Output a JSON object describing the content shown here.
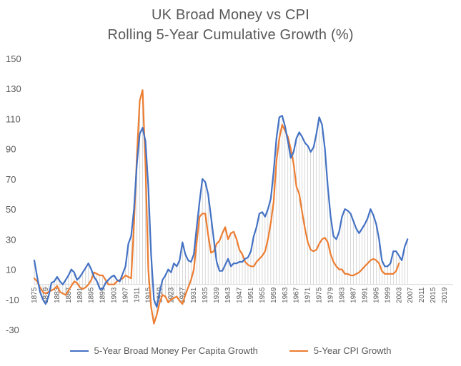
{
  "chart_data": {
    "type": "line",
    "title": "UK Broad Money vs CPI",
    "subtitle": "Rolling 5-Year Cumulative Growth (%)",
    "xlabel": "",
    "ylabel": "",
    "ylim": [
      -30,
      150
    ],
    "yticks": [
      -30,
      -10,
      10,
      30,
      50,
      70,
      90,
      110,
      130,
      150
    ],
    "x_tick_labels": [
      "1875",
      "1879",
      "1883",
      "1887",
      "1891",
      "1895",
      "1899",
      "1903",
      "1907",
      "1911",
      "1915",
      "1919",
      "1923",
      "1927",
      "1931",
      "1935",
      "1939",
      "1943",
      "1947",
      "1951",
      "1955",
      "1959",
      "1963",
      "1967",
      "1971",
      "1975",
      "1979",
      "1983",
      "1987",
      "1991",
      "1995",
      "1999",
      "2003",
      "2007",
      "2011",
      "2015",
      "2019"
    ],
    "xlim": [
      1875,
      2022
    ],
    "grid": false,
    "legend_position": "bottom",
    "colors": {
      "money": "#4472C4",
      "cpi": "#ED7D31",
      "drop_lines": "#BFBFBF",
      "axis": "#D9D9D9"
    },
    "series": [
      {
        "name": "5-Year Broad Money Per Capita Growth",
        "points": [
          [
            1875,
            16
          ],
          [
            1876,
            5
          ],
          [
            1877,
            -5
          ],
          [
            1878,
            -10
          ],
          [
            1879,
            -13
          ],
          [
            1880,
            -8
          ],
          [
            1881,
            1
          ],
          [
            1882,
            2
          ],
          [
            1883,
            5
          ],
          [
            1884,
            2
          ],
          [
            1885,
            0
          ],
          [
            1886,
            3
          ],
          [
            1887,
            6
          ],
          [
            1888,
            10
          ],
          [
            1889,
            8
          ],
          [
            1890,
            3
          ],
          [
            1891,
            5
          ],
          [
            1892,
            8
          ],
          [
            1893,
            11
          ],
          [
            1894,
            14
          ],
          [
            1895,
            10
          ],
          [
            1896,
            5
          ],
          [
            1897,
            2
          ],
          [
            1898,
            -3
          ],
          [
            1899,
            -3
          ],
          [
            1900,
            1
          ],
          [
            1901,
            3
          ],
          [
            1902,
            5
          ],
          [
            1903,
            6
          ],
          [
            1904,
            3
          ],
          [
            1905,
            2
          ],
          [
            1906,
            7
          ],
          [
            1907,
            12
          ],
          [
            1908,
            27
          ],
          [
            1909,
            32
          ],
          [
            1910,
            50
          ],
          [
            1911,
            80
          ],
          [
            1912,
            100
          ],
          [
            1913,
            104
          ],
          [
            1914,
            95
          ],
          [
            1915,
            65
          ],
          [
            1916,
            20
          ],
          [
            1917,
            -10
          ],
          [
            1918,
            -15
          ],
          [
            1919,
            -5
          ],
          [
            1920,
            3
          ],
          [
            1921,
            6
          ],
          [
            1922,
            10
          ],
          [
            1923,
            8
          ],
          [
            1924,
            14
          ],
          [
            1925,
            12
          ],
          [
            1926,
            16
          ],
          [
            1927,
            28
          ],
          [
            1928,
            20
          ],
          [
            1929,
            16
          ],
          [
            1930,
            15
          ],
          [
            1931,
            20
          ],
          [
            1932,
            38
          ],
          [
            1933,
            55
          ],
          [
            1934,
            70
          ],
          [
            1935,
            68
          ],
          [
            1936,
            60
          ],
          [
            1937,
            45
          ],
          [
            1938,
            30
          ],
          [
            1939,
            15
          ],
          [
            1940,
            9
          ],
          [
            1941,
            9
          ],
          [
            1942,
            13
          ],
          [
            1943,
            17
          ],
          [
            1944,
            12
          ],
          [
            1945,
            14
          ],
          [
            1946,
            14
          ],
          [
            1947,
            15
          ],
          [
            1948,
            15
          ],
          [
            1949,
            17
          ],
          [
            1950,
            18
          ],
          [
            1951,
            22
          ],
          [
            1952,
            32
          ],
          [
            1953,
            38
          ],
          [
            1954,
            47
          ],
          [
            1955,
            48
          ],
          [
            1956,
            45
          ],
          [
            1957,
            50
          ],
          [
            1958,
            57
          ],
          [
            1959,
            75
          ],
          [
            1960,
            97
          ],
          [
            1961,
            111
          ],
          [
            1962,
            112
          ],
          [
            1963,
            105
          ],
          [
            1964,
            95
          ],
          [
            1965,
            84
          ],
          [
            1966,
            88
          ],
          [
            1967,
            97
          ],
          [
            1968,
            101
          ],
          [
            1969,
            98
          ],
          [
            1970,
            94
          ],
          [
            1971,
            92
          ],
          [
            1972,
            88
          ],
          [
            1973,
            91
          ],
          [
            1974,
            100
          ],
          [
            1975,
            111
          ],
          [
            1976,
            106
          ],
          [
            1977,
            90
          ],
          [
            1978,
            65
          ],
          [
            1979,
            45
          ],
          [
            1980,
            32
          ],
          [
            1981,
            30
          ],
          [
            1982,
            35
          ],
          [
            1983,
            45
          ],
          [
            1984,
            50
          ],
          [
            1985,
            49
          ],
          [
            1986,
            47
          ],
          [
            1987,
            42
          ],
          [
            1988,
            37
          ],
          [
            1989,
            34
          ],
          [
            1990,
            37
          ],
          [
            1991,
            40
          ],
          [
            1992,
            44
          ],
          [
            1993,
            50
          ],
          [
            1994,
            46
          ],
          [
            1995,
            40
          ],
          [
            1996,
            30
          ],
          [
            1997,
            16
          ],
          [
            1998,
            12
          ],
          [
            1999,
            12
          ],
          [
            2000,
            14
          ],
          [
            2001,
            22
          ],
          [
            2002,
            22
          ],
          [
            2003,
            19
          ],
          [
            2004,
            16
          ],
          [
            2005,
            25
          ],
          [
            2006,
            30
          ]
        ]
      },
      {
        "name": "5-Year CPI Growth",
        "points": [
          [
            1875,
            4
          ],
          [
            1876,
            2
          ],
          [
            1877,
            -2
          ],
          [
            1878,
            -5
          ],
          [
            1879,
            -6
          ],
          [
            1880,
            -5
          ],
          [
            1881,
            -4
          ],
          [
            1882,
            -3
          ],
          [
            1883,
            -1
          ],
          [
            1884,
            -5
          ],
          [
            1885,
            -6
          ],
          [
            1886,
            -7
          ],
          [
            1887,
            -4
          ],
          [
            1888,
            -1
          ],
          [
            1889,
            2
          ],
          [
            1890,
            1
          ],
          [
            1891,
            -2
          ],
          [
            1892,
            -3
          ],
          [
            1893,
            -2
          ],
          [
            1894,
            0
          ],
          [
            1895,
            3
          ],
          [
            1896,
            8
          ],
          [
            1897,
            7
          ],
          [
            1898,
            6
          ],
          [
            1899,
            6
          ],
          [
            1900,
            3
          ],
          [
            1901,
            0
          ],
          [
            1902,
            0
          ],
          [
            1903,
            0
          ],
          [
            1904,
            2
          ],
          [
            1905,
            3
          ],
          [
            1906,
            4
          ],
          [
            1907,
            6
          ],
          [
            1908,
            5
          ],
          [
            1909,
            4
          ],
          [
            1910,
            40
          ],
          [
            1911,
            85
          ],
          [
            1912,
            122
          ],
          [
            1913,
            129
          ],
          [
            1914,
            80
          ],
          [
            1915,
            10
          ],
          [
            1916,
            -15
          ],
          [
            1917,
            -26
          ],
          [
            1918,
            -20
          ],
          [
            1919,
            -12
          ],
          [
            1920,
            -7
          ],
          [
            1921,
            -8
          ],
          [
            1922,
            -12
          ],
          [
            1923,
            -10
          ],
          [
            1924,
            -9
          ],
          [
            1925,
            -8
          ],
          [
            1926,
            -11
          ],
          [
            1927,
            -13
          ],
          [
            1928,
            -7
          ],
          [
            1929,
            -2
          ],
          [
            1930,
            3
          ],
          [
            1931,
            10
          ],
          [
            1932,
            28
          ],
          [
            1933,
            45
          ],
          [
            1934,
            47
          ],
          [
            1935,
            47
          ],
          [
            1936,
            33
          ],
          [
            1937,
            21
          ],
          [
            1938,
            22
          ],
          [
            1939,
            27
          ],
          [
            1940,
            29
          ],
          [
            1941,
            34
          ],
          [
            1942,
            38
          ],
          [
            1943,
            30
          ],
          [
            1944,
            34
          ],
          [
            1945,
            35
          ],
          [
            1946,
            30
          ],
          [
            1947,
            23
          ],
          [
            1948,
            20
          ],
          [
            1949,
            15
          ],
          [
            1950,
            13
          ],
          [
            1951,
            12
          ],
          [
            1952,
            12
          ],
          [
            1953,
            15
          ],
          [
            1954,
            17
          ],
          [
            1955,
            19
          ],
          [
            1956,
            22
          ],
          [
            1957,
            30
          ],
          [
            1958,
            41
          ],
          [
            1959,
            55
          ],
          [
            1960,
            82
          ],
          [
            1961,
            97
          ],
          [
            1962,
            106
          ],
          [
            1963,
            102
          ],
          [
            1964,
            98
          ],
          [
            1965,
            90
          ],
          [
            1966,
            80
          ],
          [
            1967,
            65
          ],
          [
            1968,
            60
          ],
          [
            1969,
            48
          ],
          [
            1970,
            37
          ],
          [
            1971,
            28
          ],
          [
            1972,
            23
          ],
          [
            1973,
            22
          ],
          [
            1974,
            23
          ],
          [
            1975,
            27
          ],
          [
            1976,
            30
          ],
          [
            1977,
            31
          ],
          [
            1978,
            28
          ],
          [
            1979,
            20
          ],
          [
            1980,
            15
          ],
          [
            1981,
            12
          ],
          [
            1982,
            10
          ],
          [
            1983,
            10
          ],
          [
            1984,
            7
          ],
          [
            1985,
            7
          ],
          [
            1986,
            6
          ],
          [
            1987,
            6
          ],
          [
            1988,
            7
          ],
          [
            1989,
            8
          ],
          [
            1990,
            10
          ],
          [
            1991,
            12
          ],
          [
            1992,
            14
          ],
          [
            1993,
            16
          ],
          [
            1994,
            17
          ],
          [
            1995,
            16
          ],
          [
            1996,
            14
          ],
          [
            1997,
            9
          ],
          [
            1998,
            7
          ],
          [
            1999,
            7
          ],
          [
            2000,
            7
          ],
          [
            2001,
            7
          ],
          [
            2002,
            9
          ],
          [
            2003,
            14
          ]
        ]
      }
    ]
  }
}
